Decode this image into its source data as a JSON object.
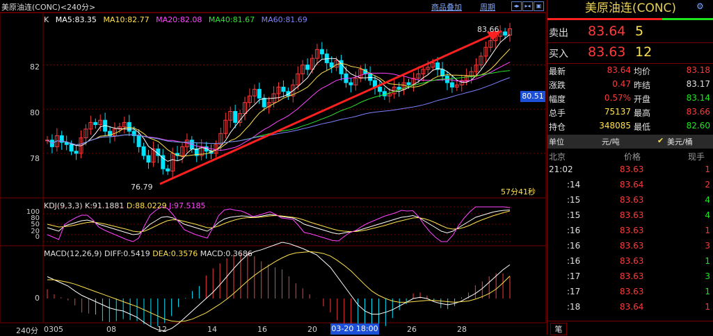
{
  "header": {
    "title": "美原油连(CONC)<240分>",
    "menu1": "商品叠加",
    "menu2": "周期"
  },
  "indicators": {
    "k_label": "K",
    "ma5": "MA5:83.35",
    "ma10": "MA10:82.77",
    "ma20": "MA20:82.08",
    "ma40": "MA40:81.67",
    "ma60": "MA60:81.69",
    "kdj": "KDJ(9,3,3)",
    "kdj_k": "K:91.1881",
    "kdj_d": "D:88.0229",
    "kdj_j": "J:97.5185",
    "macd": "MACD(12,26,9)",
    "macd_diff": "DIFF:0.5419",
    "macd_dea": "DEA:0.3576",
    "macd_val": "MACD:0.3686"
  },
  "chart_data": {
    "type": "line",
    "xlabel": "240分",
    "x_ticks": [
      "0305",
      "08",
      "12",
      "14",
      "16",
      "20",
      "26",
      "28"
    ],
    "cursor_label": "03-20 18:00",
    "y_ticks": [
      "82",
      "80",
      "78"
    ],
    "ylim": [
      76.3,
      84.0
    ],
    "high_label": "83.66",
    "low_label": "76.79",
    "price_tag": "80.51",
    "countdown": "57分41秒",
    "kdj_ticks": [
      "100",
      "80",
      "50",
      "20",
      "0"
    ],
    "macd_tick": "0",
    "series": [
      {
        "name": "MA5",
        "color": "#ffffff"
      },
      {
        "name": "MA10",
        "color": "#ffe14d"
      },
      {
        "name": "MA20",
        "color": "#ff44ff"
      },
      {
        "name": "MA40",
        "color": "#2ee62e"
      },
      {
        "name": "MA60",
        "color": "#8080ff"
      }
    ],
    "close": [
      78.6,
      78.3,
      78.8,
      78.5,
      78.4,
      78.1,
      78.0,
      78.7,
      79.1,
      79.4,
      79.3,
      79.5,
      79.0,
      78.8,
      79.1,
      79.2,
      79.4,
      79.0,
      78.8,
      78.3,
      77.9,
      77.6,
      78.2,
      77.9,
      77.3,
      77.2,
      78.0,
      77.9,
      78.3,
      78.6,
      78.2,
      77.9,
      78.3,
      78.1,
      78.0,
      78.4,
      78.9,
      79.5,
      79.9,
      79.4,
      79.8,
      80.3,
      80.6,
      80.9,
      80.5,
      80.1,
      80.3,
      80.7,
      81.0,
      80.8,
      80.6,
      81.1,
      81.6,
      82.0,
      81.8,
      82.3,
      82.7,
      82.5,
      82.1,
      81.9,
      82.2,
      81.6,
      81.2,
      81.1,
      81.4,
      81.8,
      81.6,
      81.3,
      81.0,
      80.8,
      80.6,
      80.7,
      81.0,
      80.9,
      81.2,
      81.1,
      81.4,
      81.6,
      81.8,
      81.9,
      82.1,
      81.8,
      81.5,
      81.2,
      81.0,
      81.1,
      81.3,
      81.5,
      81.7,
      82.0,
      82.4,
      82.8,
      83.1,
      83.3,
      83.5,
      83.35,
      83.64
    ],
    "kdj_k": [
      40,
      35,
      30,
      45,
      50,
      55,
      60,
      62,
      58,
      50,
      45,
      40,
      35,
      30,
      25,
      20,
      22,
      35,
      50,
      60,
      70,
      72,
      68,
      60,
      50,
      45,
      40,
      35,
      30,
      40,
      55,
      65,
      70,
      72,
      74,
      73,
      70,
      72,
      75,
      78,
      76,
      72,
      70,
      68,
      60,
      50,
      45,
      40,
      35,
      30,
      25,
      22,
      25,
      28,
      30,
      35,
      40,
      45,
      50,
      55,
      60,
      65,
      70,
      72,
      75,
      70,
      60,
      50,
      40,
      30,
      25,
      30,
      40,
      50,
      60,
      70,
      75,
      80,
      85,
      88,
      90,
      91
    ],
    "kdj_d": [
      50,
      46,
      42,
      43,
      45,
      48,
      52,
      55,
      56,
      54,
      51,
      47,
      43,
      39,
      35,
      30,
      28,
      30,
      37,
      45,
      53,
      60,
      63,
      62,
      58,
      54,
      50,
      45,
      40,
      40,
      45,
      52,
      58,
      63,
      67,
      69,
      69,
      70,
      72,
      74,
      75,
      74,
      72,
      70,
      67,
      62,
      56,
      51,
      46,
      41,
      36,
      32,
      30,
      29,
      29,
      31,
      34,
      38,
      42,
      46,
      51,
      56,
      60,
      64,
      68,
      69,
      66,
      61,
      54,
      46,
      39,
      36,
      37,
      41,
      47,
      55,
      62,
      68,
      74,
      79,
      84,
      88
    ],
    "kdj_j": [
      20,
      13,
      6,
      49,
      60,
      69,
      76,
      76,
      62,
      42,
      33,
      26,
      19,
      12,
      5,
      0,
      10,
      45,
      76,
      90,
      100,
      96,
      78,
      56,
      34,
      27,
      20,
      15,
      10,
      40,
      75,
      91,
      94,
      90,
      88,
      81,
      72,
      76,
      81,
      86,
      78,
      68,
      66,
      64,
      46,
      26,
      23,
      18,
      13,
      8,
      3,
      2,
      15,
      26,
      32,
      43,
      52,
      59,
      66,
      73,
      78,
      83,
      90,
      88,
      89,
      72,
      48,
      28,
      12,
      0,
      0,
      18,
      46,
      68,
      86,
      100,
      100,
      100,
      100,
      100,
      100,
      97.5
    ],
    "macd_diff": [
      0.35,
      0.3,
      0.25,
      0.2,
      0.12,
      0.05,
      0.0,
      -0.05,
      -0.1,
      -0.15,
      -0.18,
      -0.2,
      -0.25,
      -0.3,
      -0.38,
      -0.45,
      -0.5,
      -0.52,
      -0.48,
      -0.4,
      -0.3,
      -0.2,
      -0.1,
      0.0,
      0.1,
      0.22,
      0.35,
      0.48,
      0.6,
      0.7,
      0.75,
      0.78,
      0.82,
      0.86,
      0.9,
      0.88,
      0.84,
      0.8,
      0.75,
      0.7,
      0.6,
      0.5,
      0.35,
      0.2,
      0.05,
      -0.1,
      -0.2,
      -0.25,
      -0.25,
      -0.22,
      -0.18,
      -0.12,
      -0.06,
      0.0,
      0.02,
      0.0,
      -0.05,
      -0.08,
      -0.1,
      -0.08,
      -0.04,
      0.02,
      0.08,
      0.16,
      0.26,
      0.36,
      0.46,
      0.54
    ],
    "macd_dea": [
      0.3,
      0.3,
      0.28,
      0.26,
      0.23,
      0.19,
      0.15,
      0.11,
      0.07,
      0.03,
      -0.01,
      -0.05,
      -0.09,
      -0.13,
      -0.18,
      -0.23,
      -0.28,
      -0.33,
      -0.36,
      -0.37,
      -0.36,
      -0.33,
      -0.28,
      -0.23,
      -0.16,
      -0.09,
      -0.01,
      0.08,
      0.18,
      0.28,
      0.37,
      0.45,
      0.52,
      0.59,
      0.65,
      0.7,
      0.73,
      0.74,
      0.75,
      0.74,
      0.72,
      0.68,
      0.61,
      0.53,
      0.44,
      0.33,
      0.22,
      0.12,
      0.05,
      0.0,
      -0.04,
      -0.06,
      -0.06,
      -0.05,
      -0.04,
      -0.03,
      -0.03,
      -0.04,
      -0.05,
      -0.06,
      -0.05,
      -0.04,
      -0.01,
      0.03,
      0.08,
      0.15,
      0.25,
      0.36
    ]
  },
  "quote": {
    "title": "美原油连(CONC)",
    "sell_label": "卖出",
    "sell_price": "83.64",
    "sell_vol": "5",
    "buy_label": "买入",
    "buy_price": "83.63",
    "buy_vol": "12",
    "latest_label": "最新",
    "latest": "83.64",
    "avg_label": "均价",
    "avg": "83.18",
    "chg_label": "涨跌",
    "chg": "0.47",
    "prev_label": "昨结",
    "prev": "83.17",
    "amp_label": "幅度",
    "amp": "0.57%",
    "open_label": "开盘",
    "open": "83.14",
    "total_label": "总手",
    "total": "75137",
    "high_label": "最高",
    "high": "83.66",
    "oi_label": "持仓",
    "oi": "348085",
    "low_label": "最低",
    "low": "82.60",
    "unit_label": "单位",
    "unit": "元/吨",
    "unit_usd": "美元/桶",
    "tick_hdr_loc": "北京",
    "tick_hdr_price": "价格",
    "tick_hdr_vol": "现手",
    "ticks": [
      {
        "t": "21:02",
        "p": "83.63",
        "v": "1",
        "vc": "red"
      },
      {
        "t": ":14",
        "p": "83.64",
        "v": "2",
        "vc": "red"
      },
      {
        "t": ":15",
        "p": "83.63",
        "v": "4",
        "vc": "grn"
      },
      {
        "t": ":15",
        "p": "83.63",
        "v": "4",
        "vc": "grn"
      },
      {
        "t": ":16",
        "p": "83.63",
        "v": "1",
        "vc": "red"
      },
      {
        "t": ":16",
        "p": "83.63",
        "v": "3",
        "vc": "red"
      },
      {
        "t": ":16",
        "p": "83.63",
        "v": "1",
        "vc": "grn"
      },
      {
        "t": ":17",
        "p": "83.63",
        "v": "3",
        "vc": "grn"
      },
      {
        "t": ":17",
        "p": "83.63",
        "v": "1",
        "vc": "grn"
      },
      {
        "t": ":18",
        "p": "83.64",
        "v": "1",
        "vc": "red"
      }
    ],
    "tab": "笔"
  },
  "colors": {
    "up": "#ff3a3a",
    "down": "#00e5ff",
    "arrow": "#ff2020"
  }
}
